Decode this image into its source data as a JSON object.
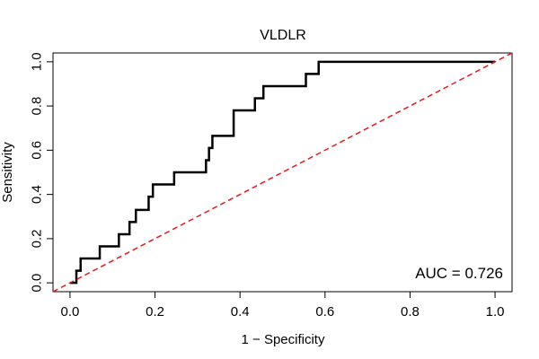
{
  "chart_data": {
    "type": "line",
    "title": "VLDLR",
    "xlabel": "1 − Specificity",
    "ylabel": "Sensitivity",
    "xlim": [
      -0.04,
      1.04
    ],
    "ylim": [
      -0.04,
      1.04
    ],
    "x_ticks": [
      "0.0",
      "0.2",
      "0.4",
      "0.6",
      "0.8",
      "1.0"
    ],
    "y_ticks": [
      "0.0",
      "0.2",
      "0.4",
      "0.6",
      "0.8",
      "1.0"
    ],
    "grid": false,
    "annotation": "AUC = 0.726",
    "series": [
      {
        "type": "step",
        "color": "#000000",
        "x": [
          0.0,
          0.015,
          0.015,
          0.025,
          0.025,
          0.035,
          0.035,
          0.07,
          0.07,
          0.115,
          0.115,
          0.14,
          0.14,
          0.155,
          0.155,
          0.185,
          0.185,
          0.195,
          0.195,
          0.245,
          0.245,
          0.32,
          0.32,
          0.327,
          0.327,
          0.335,
          0.335,
          0.385,
          0.385,
          0.435,
          0.435,
          0.455,
          0.455,
          0.555,
          0.555,
          0.585,
          0.585,
          1.0
        ],
        "y": [
          0.0,
          0.0,
          0.055,
          0.055,
          0.11,
          0.11,
          0.11,
          0.11,
          0.165,
          0.165,
          0.22,
          0.22,
          0.275,
          0.275,
          0.33,
          0.33,
          0.39,
          0.39,
          0.445,
          0.445,
          0.5,
          0.5,
          0.555,
          0.555,
          0.61,
          0.61,
          0.665,
          0.665,
          0.78,
          0.78,
          0.835,
          0.835,
          0.89,
          0.89,
          0.945,
          0.945,
          1.0,
          1.0
        ]
      },
      {
        "type": "diagonal",
        "color": "#e41a1c",
        "dashed": true,
        "x": [
          -0.04,
          1.04
        ],
        "y": [
          -0.04,
          1.04
        ]
      }
    ]
  }
}
